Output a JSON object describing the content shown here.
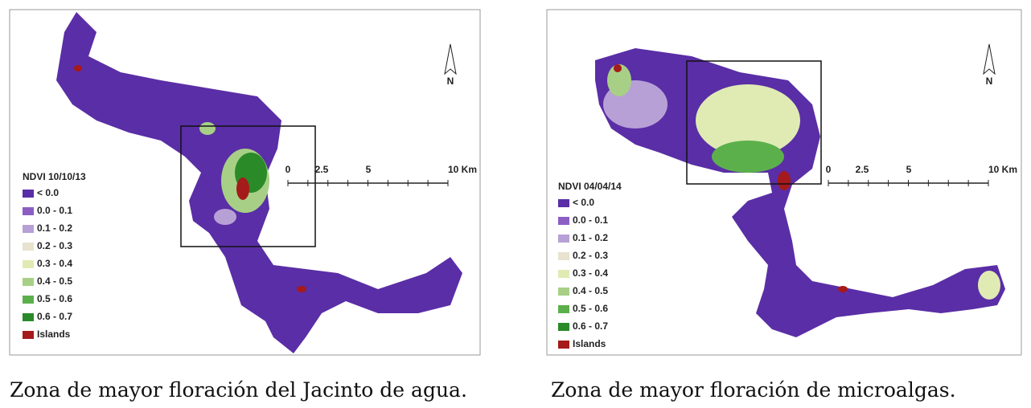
{
  "panels": [
    {
      "legend": {
        "title": "NDVI 10/10/13",
        "items": [
          {
            "label": "< 0.0",
            "color": "#5a2ea6"
          },
          {
            "label": "0.0 - 0.1",
            "color": "#8c5ec4"
          },
          {
            "label": "0.1 - 0.2",
            "color": "#b7a0d6"
          },
          {
            "label": "0.2 - 0.3",
            "color": "#e8e2cf"
          },
          {
            "label": "0.3 - 0.4",
            "color": "#e0ebb4"
          },
          {
            "label": "0.4 - 0.5",
            "color": "#a7d086"
          },
          {
            "label": "0.5 - 0.6",
            "color": "#5cb04c"
          },
          {
            "label": "0.6 - 0.7",
            "color": "#2a8a28"
          },
          {
            "label": "Islands",
            "color": "#a51a1a"
          }
        ]
      },
      "scale_labels": [
        "0",
        "2.5",
        "5",
        "10 Km"
      ],
      "north": "N",
      "caption": "Zona de mayor floración del Jacinto de agua."
    },
    {
      "legend": {
        "title": "NDVI 04/04/14",
        "items": [
          {
            "label": "< 0.0",
            "color": "#5a2ea6"
          },
          {
            "label": "0.0 - 0.1",
            "color": "#8c5ec4"
          },
          {
            "label": "0.1 - 0.2",
            "color": "#b7a0d6"
          },
          {
            "label": "0.2 - 0.3",
            "color": "#e8e2cf"
          },
          {
            "label": "0.3 - 0.4",
            "color": "#e0ebb4"
          },
          {
            "label": "0.4 - 0.5",
            "color": "#a7d086"
          },
          {
            "label": "0.5 - 0.6",
            "color": "#5cb04c"
          },
          {
            "label": "0.6 - 0.7",
            "color": "#2a8a28"
          },
          {
            "label": "Islands",
            "color": "#a51a1a"
          }
        ]
      },
      "scale_labels": [
        "0",
        "2.5",
        "5",
        "10 Km"
      ],
      "north": "N",
      "caption": "Zona de mayor floración de microalgas."
    }
  ]
}
